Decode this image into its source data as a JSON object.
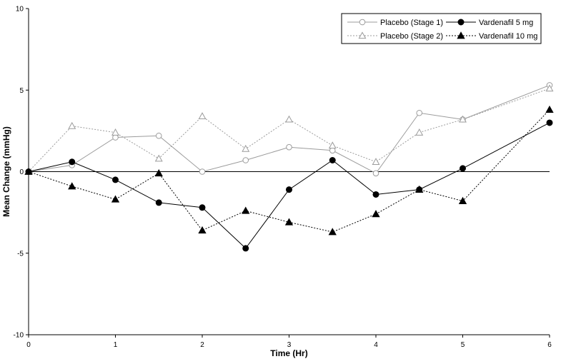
{
  "chart_data": {
    "type": "line",
    "title": "",
    "xlabel": "Time (Hr)",
    "ylabel": "Mean Change (mmHg)",
    "xlim": [
      0,
      6
    ],
    "ylim": [
      -10,
      10
    ],
    "x_ticks": [
      0,
      1,
      2,
      3,
      4,
      5,
      6
    ],
    "y_ticks": [
      -10,
      -5,
      0,
      5,
      10
    ],
    "grid": false,
    "zero_line": true,
    "legend_position": "top-right",
    "x": [
      0,
      0.5,
      1,
      1.5,
      2,
      2.5,
      3,
      3.5,
      4,
      4.5,
      5,
      6
    ],
    "series": [
      {
        "name": "Placebo (Stage 1)",
        "color": "#9b9b9b",
        "line_style": "solid",
        "marker": "open-circle",
        "values": [
          0,
          0.4,
          2.1,
          2.2,
          0,
          0.7,
          1.5,
          1.3,
          -0.1,
          3.6,
          3.2,
          5.3
        ]
      },
      {
        "name": "Vardenafil 5 mg",
        "color": "#000000",
        "line_style": "solid",
        "marker": "filled-circle",
        "values": [
          0,
          0.6,
          -0.5,
          -1.9,
          -2.2,
          -4.7,
          -1.1,
          0.7,
          -1.4,
          -1.1,
          0.2,
          3.0
        ]
      },
      {
        "name": "Placebo (Stage 2)",
        "color": "#9b9b9b",
        "line_style": "dotted",
        "marker": "open-triangle",
        "values": [
          0,
          2.8,
          2.4,
          0.8,
          3.4,
          1.4,
          3.2,
          1.6,
          0.6,
          2.4,
          3.2,
          5.1
        ]
      },
      {
        "name": "Vardenafil 10 mg",
        "color": "#000000",
        "line_style": "dotted",
        "marker": "filled-triangle",
        "values": [
          0,
          -0.9,
          -1.7,
          -0.1,
          -3.6,
          -2.4,
          -3.1,
          -3.7,
          -2.6,
          -1.1,
          -1.8,
          3.8
        ]
      }
    ]
  }
}
